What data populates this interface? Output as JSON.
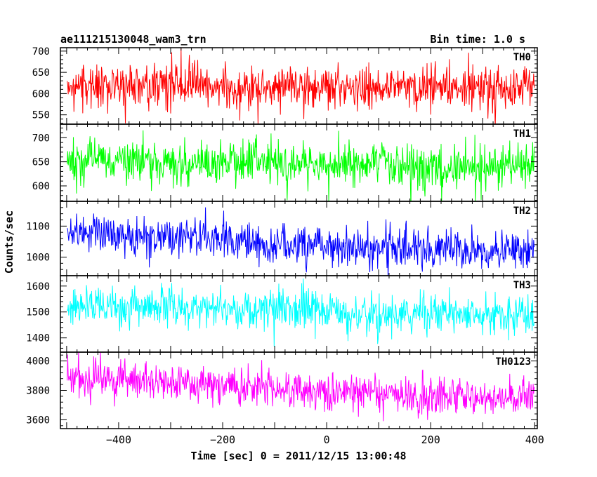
{
  "header": {
    "title": "ae111215130048_wam3_trn",
    "bin_time": "Bin time: 1.0 s"
  },
  "chart_data": {
    "type": "line",
    "xlabel": "Time [sec] 0 = 2011/12/15 13:00:48",
    "ylabel": "Counts/sec",
    "xlim": [
      -512,
      405
    ],
    "x_ticks": [
      -400,
      -200,
      0,
      200,
      400
    ],
    "x_range_of_data": [
      -499,
      399
    ],
    "bin_size": 1.0,
    "panels": [
      {
        "name": "TH0",
        "color": "#ff0000",
        "ylim": [
          528,
          708
        ],
        "y_ticks": [
          550,
          600,
          650,
          700
        ],
        "trend": [
          [
            -499,
            618
          ],
          [
            -200,
            616
          ],
          [
            0,
            612
          ],
          [
            200,
            614
          ],
          [
            399,
            612
          ]
        ],
        "noise_sd": 27,
        "y_range_of_data": [
          560,
          705
        ]
      },
      {
        "name": "TH1",
        "color": "#00ff00",
        "ylim": [
          568,
          728
        ],
        "y_ticks": [
          600,
          650,
          700
        ],
        "trend": [
          [
            -499,
            655
          ],
          [
            -200,
            648
          ],
          [
            0,
            644
          ],
          [
            200,
            640
          ],
          [
            399,
            642
          ]
        ],
        "noise_sd": 23,
        "y_range_of_data": [
          580,
          720
        ]
      },
      {
        "name": "TH2",
        "color": "#0000ff",
        "ylim": [
          940,
          1180
        ],
        "y_ticks": [
          1000,
          1100
        ],
        "trend": [
          [
            -499,
            1075
          ],
          [
            -300,
            1068
          ],
          [
            -100,
            1045
          ],
          [
            100,
            1030
          ],
          [
            250,
            1020
          ],
          [
            399,
            1018
          ]
        ],
        "noise_sd": 33,
        "y_range_of_data": [
          965,
          1180
        ]
      },
      {
        "name": "TH3",
        "color": "#00ffff",
        "ylim": [
          1345,
          1640
        ],
        "y_ticks": [
          1400,
          1500,
          1600
        ],
        "trend": [
          [
            -499,
            1525
          ],
          [
            -300,
            1520
          ],
          [
            -100,
            1505
          ],
          [
            100,
            1495
          ],
          [
            250,
            1488
          ],
          [
            399,
            1492
          ]
        ],
        "noise_sd": 38,
        "y_range_of_data": [
          1370,
          1640
        ]
      },
      {
        "name": "TH0123",
        "color": "#ff00ff",
        "ylim": [
          3540,
          4060
        ],
        "y_ticks": [
          3600,
          3800,
          4000
        ],
        "trend": [
          [
            -499,
            3880
          ],
          [
            -300,
            3860
          ],
          [
            -100,
            3810
          ],
          [
            100,
            3770
          ],
          [
            250,
            3755
          ],
          [
            399,
            3760
          ]
        ],
        "noise_sd": 62,
        "y_range_of_data": [
          3640,
          4060
        ]
      }
    ]
  }
}
